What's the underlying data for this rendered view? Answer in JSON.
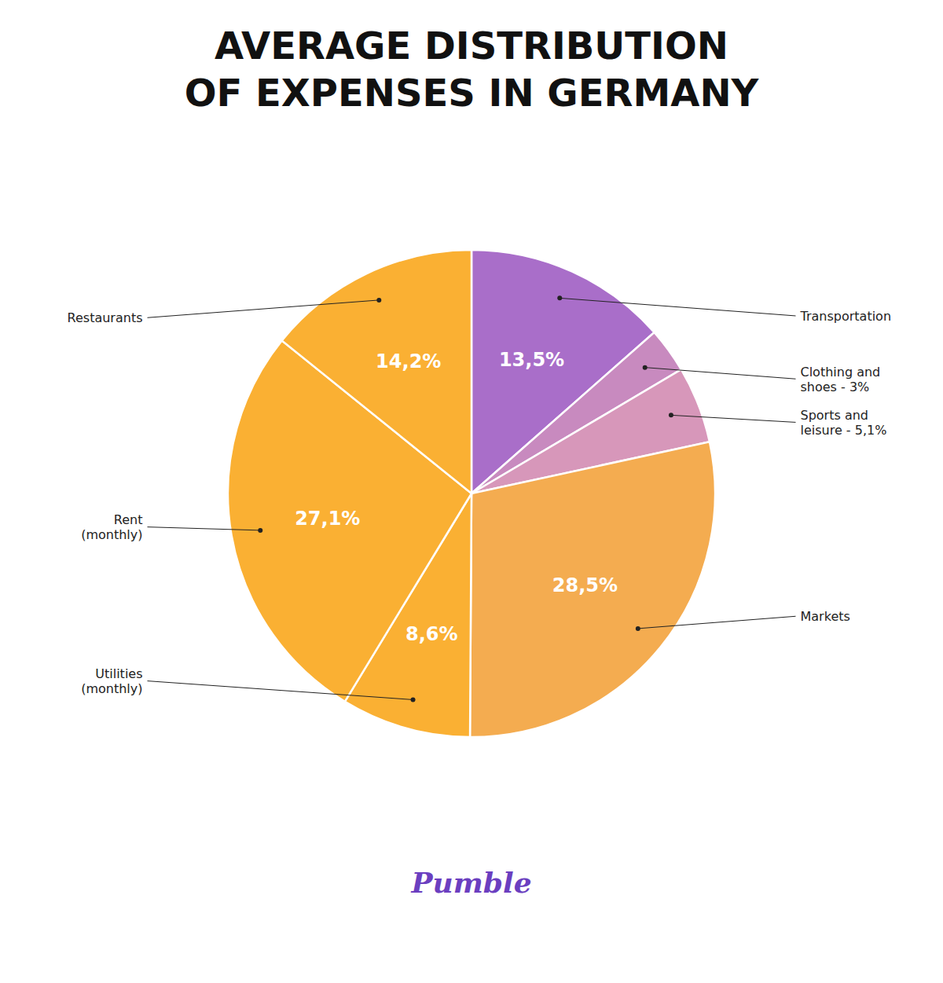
{
  "chart_data": {
    "type": "pie",
    "title": "AVERAGE DISTRIBUTION\nOF EXPENSES IN GERMANY",
    "categories": [
      "Transportation",
      "Clothing and\nshoes - 3%",
      "Sports and\nleisure - 5,1%",
      "Markets",
      "Utilities\n(monthly)",
      "Rent\n(monthly)",
      "Restaurants"
    ],
    "values": [
      13.5,
      3.0,
      5.1,
      28.5,
      8.6,
      27.1,
      14.2
    ],
    "value_labels": [
      "13,5%",
      null,
      null,
      "28,5%",
      "8,6%",
      "27,1%",
      "14,2%"
    ],
    "data_labels": true,
    "colors": [
      "#A96EC9",
      "#C88ABF",
      "#D797BA",
      "#F4AC50",
      "#FAB033",
      "#FAB033",
      "#FAB033"
    ],
    "annotations": [
      "Pumble"
    ]
  }
}
